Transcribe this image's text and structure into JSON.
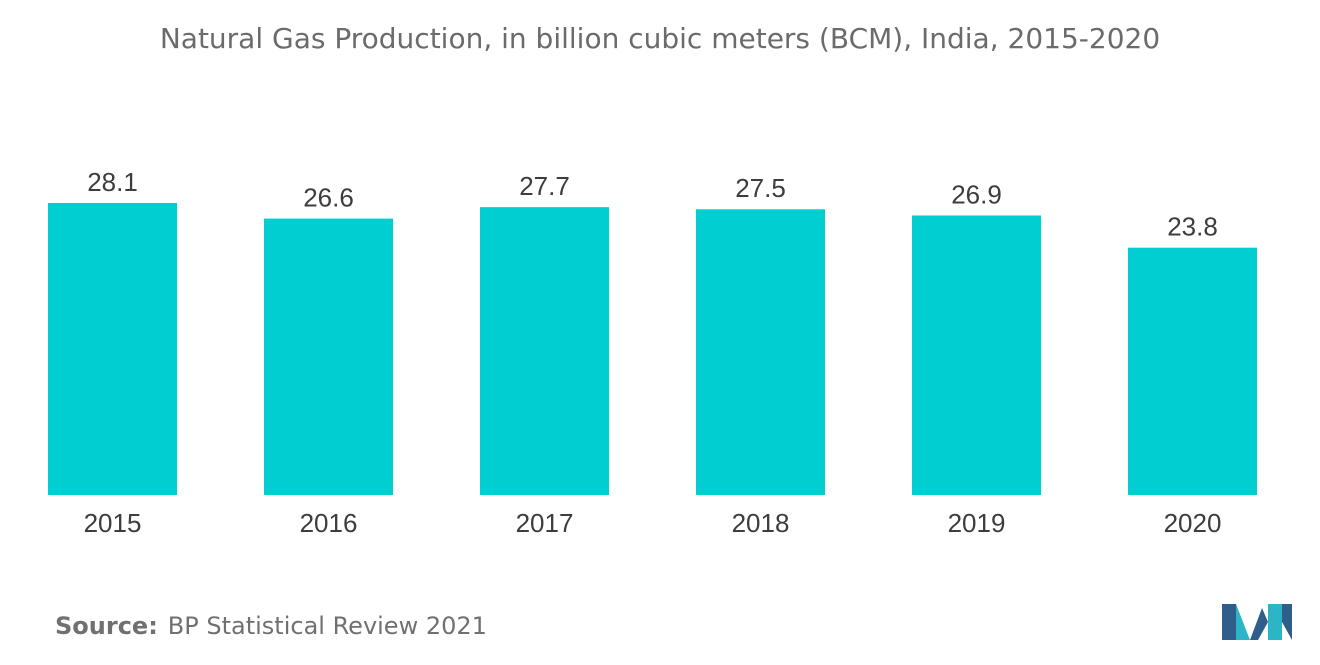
{
  "chart_data": {
    "type": "bar",
    "title": "Natural Gas Production, in billion cubic meters (BCM), India, 2015-2020",
    "categories": [
      "2015",
      "2016",
      "2017",
      "2018",
      "2019",
      "2020"
    ],
    "values": [
      28.1,
      26.6,
      27.7,
      27.5,
      26.9,
      23.8
    ],
    "data_labels": [
      "28.1",
      "26.6",
      "27.7",
      "27.5",
      "26.9",
      "23.8"
    ],
    "xlabel": "",
    "ylabel": "",
    "grid": false,
    "colors": {
      "bar": "#00CED1"
    }
  },
  "source": {
    "label": "Source:",
    "text": "BP Statistical Review 2021"
  },
  "logo": {
    "icon": "mordor-intelligence-logo-icon",
    "colors": [
      "#2F5E8A",
      "#2BB5C7"
    ]
  }
}
